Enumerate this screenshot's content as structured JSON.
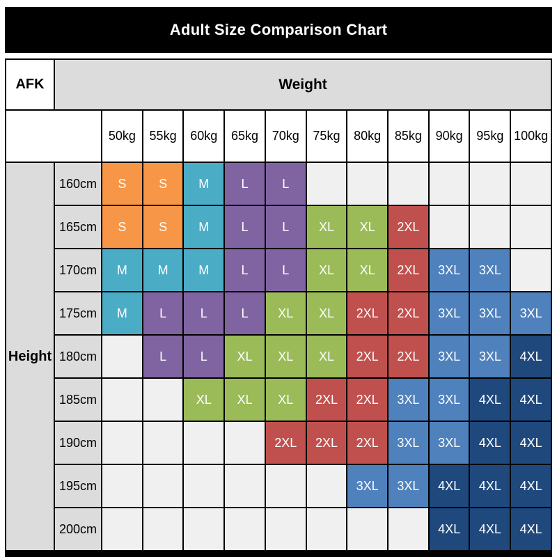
{
  "title": "Adult Size Comparison Chart",
  "header": {
    "corner_label": "AFK",
    "weight_label": "Weight",
    "height_label": "Height"
  },
  "chart_data": {
    "type": "heatmap",
    "title": "Adult Size Comparison Chart",
    "xlabel": "Weight",
    "ylabel": "Height",
    "x_categories": [
      "50kg",
      "55kg",
      "60kg",
      "65kg",
      "70kg",
      "75kg",
      "80kg",
      "85kg",
      "90kg",
      "95kg",
      "100kg"
    ],
    "y_categories": [
      "160cm",
      "165cm",
      "170cm",
      "175cm",
      "180cm",
      "185cm",
      "190cm",
      "195cm",
      "200cm"
    ],
    "values": [
      [
        "S",
        "S",
        "M",
        "L",
        "L",
        "",
        "",
        "",
        "",
        "",
        ""
      ],
      [
        "S",
        "S",
        "M",
        "L",
        "L",
        "XL",
        "XL",
        "2XL",
        "",
        "",
        ""
      ],
      [
        "M",
        "M",
        "M",
        "L",
        "L",
        "XL",
        "XL",
        "2XL",
        "3XL",
        "3XL",
        ""
      ],
      [
        "M",
        "L",
        "L",
        "L",
        "XL",
        "XL",
        "2XL",
        "2XL",
        "3XL",
        "3XL",
        "3XL"
      ],
      [
        "",
        "L",
        "L",
        "XL",
        "XL",
        "XL",
        "2XL",
        "2XL",
        "3XL",
        "3XL",
        "4XL"
      ],
      [
        "",
        "",
        "XL",
        "XL",
        "XL",
        "2XL",
        "2XL",
        "3XL",
        "3XL",
        "4XL",
        "4XL"
      ],
      [
        "",
        "",
        "",
        "",
        "2XL",
        "2XL",
        "2XL",
        "3XL",
        "3XL",
        "4XL",
        "4XL"
      ],
      [
        "",
        "",
        "",
        "",
        "",
        "",
        "3XL",
        "3XL",
        "4XL",
        "4XL",
        "4XL"
      ],
      [
        "",
        "",
        "",
        "",
        "",
        "",
        "",
        "",
        "4XL",
        "4XL",
        "4XL"
      ]
    ],
    "size_colors": {
      "S": "#F79646",
      "M": "#4BACC6",
      "L": "#8064A2",
      "XL": "#9BBB59",
      "2XL": "#C0504D",
      "3XL": "#4F81BD",
      "4XL": "#1F497D"
    },
    "empty_color": "#F0F0F0",
    "header_fill": "#DCDCDC",
    "label_fill": "#FFFFFF",
    "legend_position": "none",
    "grid": "on"
  }
}
